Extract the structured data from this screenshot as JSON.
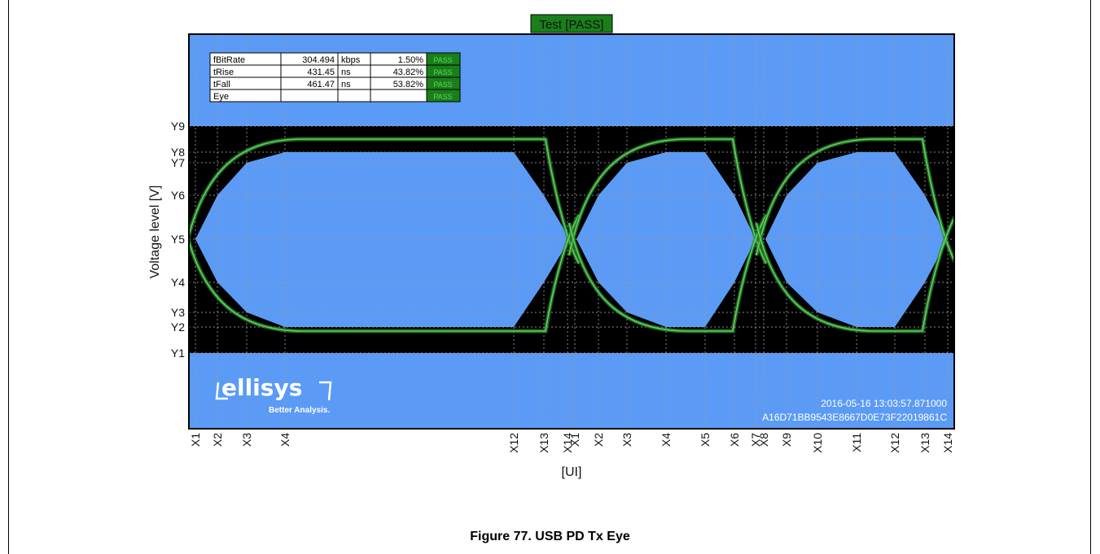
{
  "figure_caption": "Figure 77. USB PD Tx Eye",
  "chart_data": {
    "type": "eye-diagram",
    "title": "Test [PASS]",
    "xlabel": "[UI]",
    "ylabel": "Voltage level [V]",
    "y_levels": [
      "Y1",
      "Y2",
      "Y3",
      "Y4",
      "Y5",
      "Y6",
      "Y7",
      "Y8",
      "Y9"
    ],
    "x_markers": {
      "eye1": [
        "X1",
        "X2",
        "X3",
        "X4",
        "X12",
        "X13",
        "X14"
      ],
      "eye2": [
        "X1",
        "X2",
        "X3",
        "X4",
        "X5",
        "X6",
        "X7"
      ],
      "eye3": [
        "X8",
        "X9",
        "X10",
        "X11",
        "X12",
        "X13",
        "X14"
      ]
    },
    "measurements": [
      {
        "name": "fBitRate",
        "value": "304.494",
        "unit": "kbps",
        "percent": "1.50%",
        "status": "PASS"
      },
      {
        "name": "tRise",
        "value": "431.45",
        "unit": "ns",
        "percent": "43.82%",
        "status": "PASS"
      },
      {
        "name": "tFall",
        "value": "461.47",
        "unit": "ns",
        "percent": "53.82%",
        "status": "PASS"
      },
      {
        "name": "Eye",
        "value": "",
        "unit": "",
        "percent": "",
        "status": "PASS"
      }
    ],
    "grid": true,
    "timestamp": "2016-05-16 13:03:57.871000",
    "device_id": "A16D71BB9543E8667D0E73F22019861C",
    "brand": {
      "name": "ellisys",
      "tagline": "Better Analysis."
    },
    "colors": {
      "mask": "#5b9bf5",
      "background": "#000000",
      "trace": "#5fd35f",
      "pass": "#1a7f1a",
      "grid": "#9a9a9a"
    }
  }
}
